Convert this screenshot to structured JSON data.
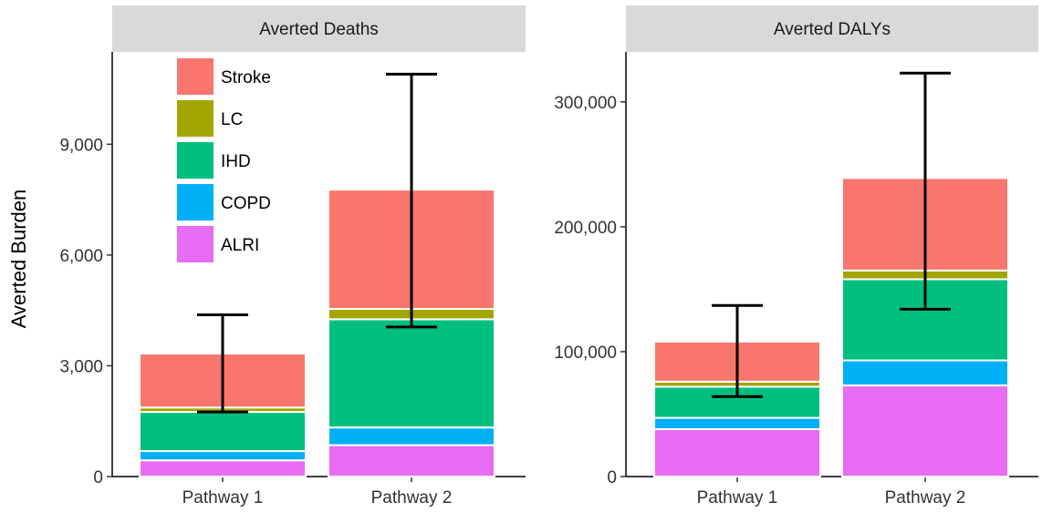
{
  "chart_data": {
    "type": "bar",
    "stacked": true,
    "ylabel": "Averted Burden",
    "categories": [
      "Pathway 1",
      "Pathway 2"
    ],
    "legend": {
      "position": "top-left",
      "entries": [
        {
          "name": "Stroke",
          "color": "#F8766D"
        },
        {
          "name": "LC",
          "color": "#A3A500"
        },
        {
          "name": "IHD",
          "color": "#00BF7D"
        },
        {
          "name": "COPD",
          "color": "#00B0F6"
        },
        {
          "name": "ALRI",
          "color": "#E76BF3"
        }
      ]
    },
    "panels": [
      {
        "title": "Averted Deaths",
        "ylim": [
          0,
          11500
        ],
        "yticks": [
          0,
          3000,
          6000,
          9000
        ],
        "ytick_labels": [
          "0",
          "3,000",
          "6,000",
          "9,000"
        ],
        "series": [
          {
            "name": "ALRI",
            "values": [
              440,
              850
            ]
          },
          {
            "name": "COPD",
            "values": [
              250,
              480
            ]
          },
          {
            "name": "IHD",
            "values": [
              1060,
              2930
            ]
          },
          {
            "name": "LC",
            "values": [
              120,
              280
            ]
          },
          {
            "name": "Stroke",
            "values": [
              1460,
              3230
            ]
          }
        ],
        "totals": [
          3330,
          7770
        ],
        "error_bars": [
          {
            "low": 1750,
            "high": 4380
          },
          {
            "low": 4050,
            "high": 10900
          }
        ]
      },
      {
        "title": "Averted DALYs",
        "ylim": [
          0,
          340000
        ],
        "yticks": [
          0,
          100000,
          200000,
          300000
        ],
        "ytick_labels": [
          "0",
          "100,000",
          "200,000",
          "300,000"
        ],
        "series": [
          {
            "name": "ALRI",
            "values": [
              38000,
              73000
            ]
          },
          {
            "name": "COPD",
            "values": [
              9000,
              20000
            ]
          },
          {
            "name": "IHD",
            "values": [
              25000,
              65000
            ]
          },
          {
            "name": "LC",
            "values": [
              4000,
              7000
            ]
          },
          {
            "name": "Stroke",
            "values": [
              32000,
              74000
            ]
          }
        ],
        "totals": [
          108000,
          239000
        ],
        "error_bars": [
          {
            "low": 64000,
            "high": 137000
          },
          {
            "low": 134000,
            "high": 323000
          }
        ]
      }
    ]
  }
}
